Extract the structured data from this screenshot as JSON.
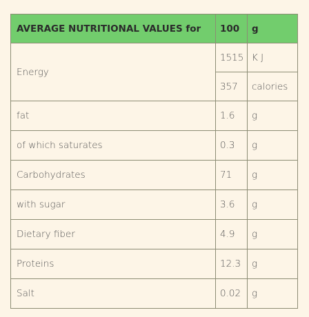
{
  "table": {
    "header": [
      "AVERAGE NUTRITIONAL VALUES for",
      "100",
      "g"
    ],
    "energy": {
      "label": "Energy",
      "entries": [
        {
          "amount": "1515",
          "unit": "K J"
        },
        {
          "amount": "357",
          "unit": "calories"
        }
      ]
    },
    "rows": [
      {
        "label": "fat",
        "amount": "1.6",
        "unit": "g"
      },
      {
        "label": "of which saturates",
        "amount": "0.3",
        "unit": "g"
      },
      {
        "label": "Carbohydrates",
        "amount": "71",
        "unit": "g"
      },
      {
        "label": "with sugar",
        "amount": "3.6",
        "unit": "g"
      },
      {
        "label": "Dietary fiber",
        "amount": "4.9",
        "unit": "g"
      },
      {
        "label": "Proteins",
        "amount": "12.3",
        "unit": "g"
      },
      {
        "label": "Salt",
        "amount": "0.02",
        "unit": "g"
      }
    ]
  }
}
